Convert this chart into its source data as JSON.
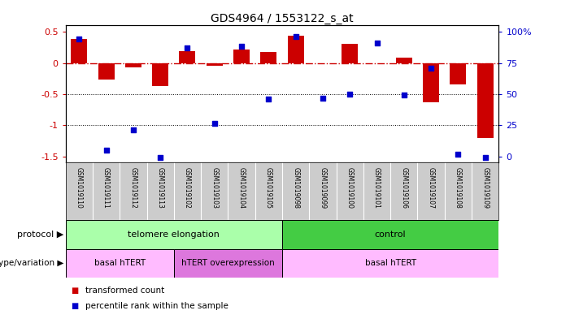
{
  "title": "GDS4964 / 1553122_s_at",
  "samples": [
    "GSM1019110",
    "GSM1019111",
    "GSM1019112",
    "GSM1019113",
    "GSM1019102",
    "GSM1019103",
    "GSM1019104",
    "GSM1019105",
    "GSM1019098",
    "GSM1019099",
    "GSM1019100",
    "GSM1019101",
    "GSM1019106",
    "GSM1019107",
    "GSM1019108",
    "GSM1019109"
  ],
  "bar_values": [
    0.38,
    -0.27,
    -0.07,
    -0.37,
    0.19,
    -0.04,
    0.22,
    0.17,
    0.43,
    -0.01,
    0.31,
    -0.01,
    0.08,
    -0.63,
    -0.35,
    -1.2
  ],
  "dot_values": [
    0.39,
    -1.4,
    -1.07,
    -1.52,
    0.24,
    -0.97,
    0.27,
    -0.58,
    0.42,
    -0.56,
    -0.5,
    0.32,
    -0.52,
    -0.08,
    -1.47,
    -1.52
  ],
  "bar_color": "#cc0000",
  "dot_color": "#0000cc",
  "ylim_min": -1.6,
  "ylim_max": 0.6,
  "yticks_left": [
    -1.5,
    -1.0,
    -0.5,
    0.0,
    0.5
  ],
  "ytick_labels_left": [
    "-1.5",
    "-1",
    "-0.5",
    "0",
    "0.5"
  ],
  "right_tick_positions": [
    -1.5,
    -1.0,
    -0.5,
    0.0,
    0.5
  ],
  "ytick_labels_right": [
    "0",
    "25",
    "50",
    "75",
    "100%"
  ],
  "hline_value": 0.0,
  "dotted_hlines": [
    -0.5,
    -1.0
  ],
  "protocol_groups": [
    {
      "label": "telomere elongation",
      "start": 0,
      "end": 8,
      "color": "#aaffaa"
    },
    {
      "label": "control",
      "start": 8,
      "end": 16,
      "color": "#44cc44"
    }
  ],
  "genotype_groups": [
    {
      "label": "basal hTERT",
      "start": 0,
      "end": 4,
      "color": "#ffbbff"
    },
    {
      "label": "hTERT overexpression",
      "start": 4,
      "end": 8,
      "color": "#dd77dd"
    },
    {
      "label": "basal hTERT",
      "start": 8,
      "end": 16,
      "color": "#ffbbff"
    }
  ],
  "legend_red_label": "transformed count",
  "legend_blue_label": "percentile rank within the sample",
  "protocol_label": "protocol",
  "genotype_label": "genotype/variation",
  "left_tick_color": "#cc0000",
  "right_tick_color": "#0000cc",
  "bg_color": "#ffffff",
  "bar_width": 0.6,
  "dot_size": 22,
  "names_bg": "#cccccc",
  "names_sep_color": "#ffffff"
}
